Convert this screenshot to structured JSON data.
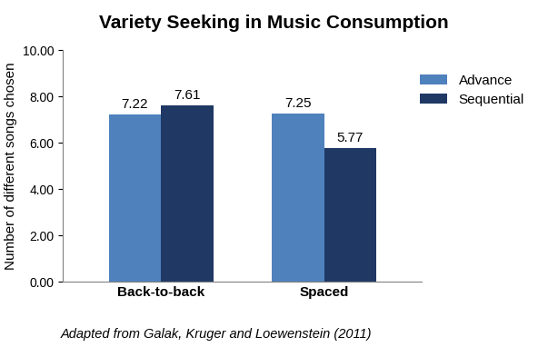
{
  "chart_data": {
    "type": "bar",
    "title": "Variety Seeking in Music Consumption",
    "y_label": "Number of different songs chosen",
    "annotations": [
      "Adapted from Galak, Kruger and Loewenstein (2011)"
    ],
    "categories": [
      "Back-to-back",
      "Spaced"
    ],
    "series": [
      {
        "name": "Advance",
        "color": "#4f81bd",
        "values": [
          7.22,
          7.25
        ]
      },
      {
        "name": "Sequential",
        "color": "#1f3864",
        "values": [
          7.61,
          5.77
        ]
      }
    ],
    "ylim": [
      0,
      10
    ],
    "yticks": [
      {
        "value": 0,
        "label": "0.00"
      },
      {
        "value": 2,
        "label": "2.00"
      },
      {
        "value": 4,
        "label": "4.00"
      },
      {
        "value": 6,
        "label": "6.00"
      },
      {
        "value": 8,
        "label": "8.00"
      },
      {
        "value": 10,
        "label": "10.00"
      }
    ],
    "grid": false,
    "legend": "upper right",
    "data_labels": true
  }
}
